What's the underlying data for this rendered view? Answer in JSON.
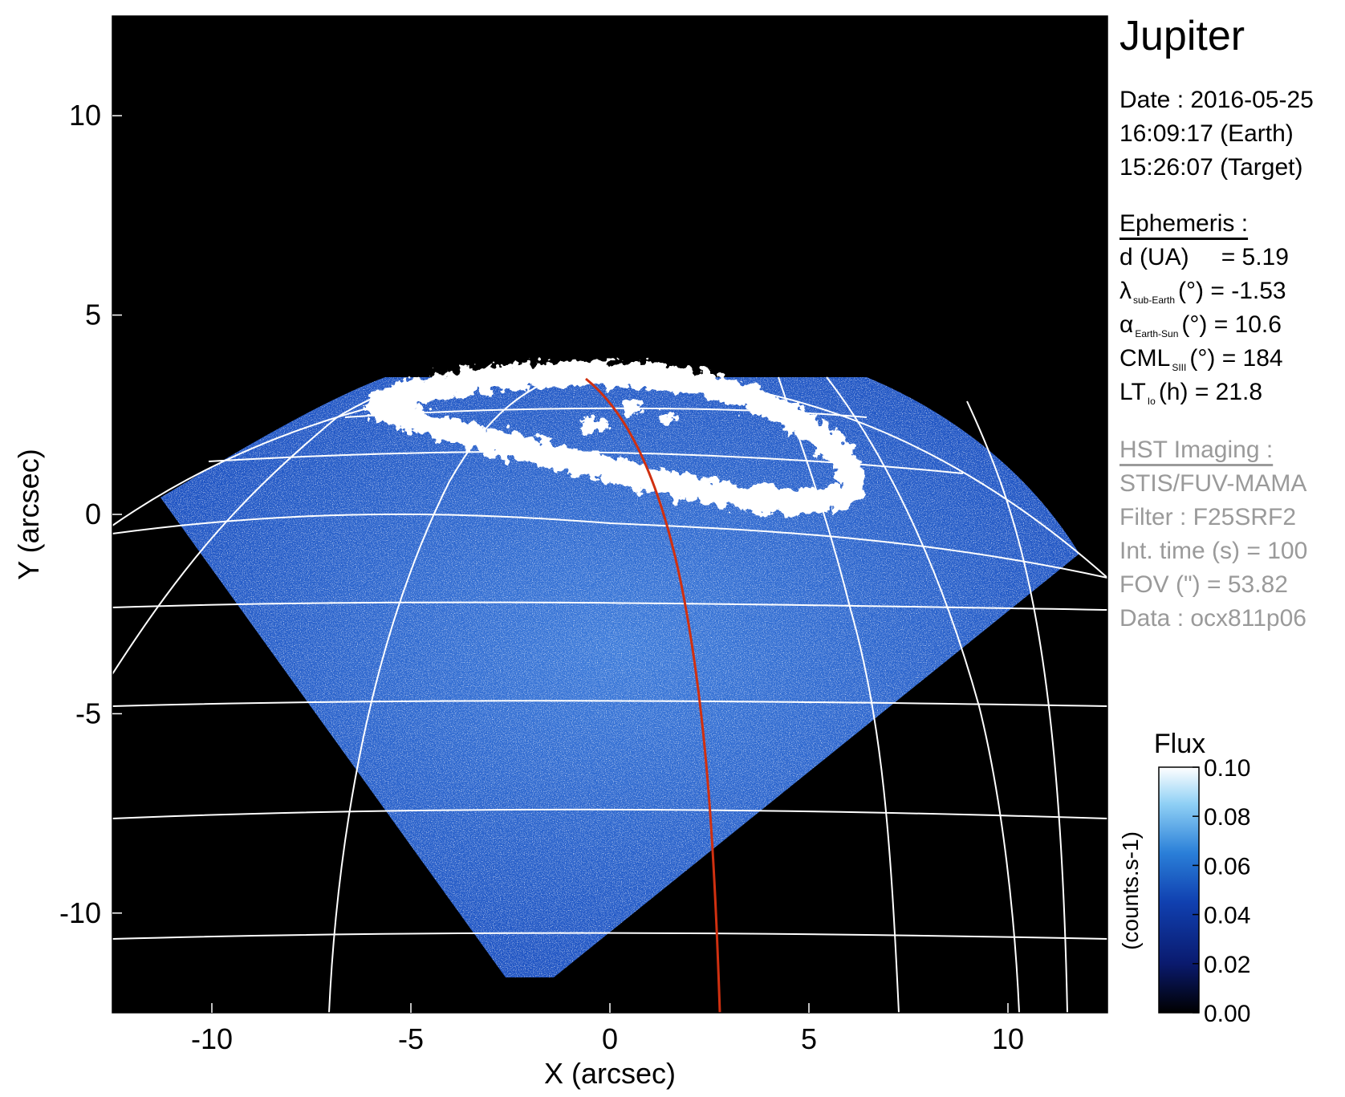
{
  "target": "Jupiter",
  "observation": {
    "date_line": "Date : 2016-05-25",
    "time_earth": "16:09:17 (Earth)",
    "time_target": "15:26:07 (Target)"
  },
  "ephemeris": {
    "heading": "Ephemeris :",
    "d": {
      "label": "d (UA)",
      "value": "= 5.19"
    },
    "lambda": {
      "symbol": "λ",
      "sub": "sub-Earth",
      "unit": "(°)",
      "value": "= -1.53"
    },
    "alpha": {
      "symbol": "α",
      "sub": "Earth-Sun",
      "unit": "(°)",
      "value": "= 10.6"
    },
    "cml": {
      "symbol": "CML",
      "sub": "SIII",
      "unit": "(°)",
      "value": "= 184"
    },
    "lt": {
      "symbol": "LT",
      "sub": "Io",
      "unit": "(h)",
      "value": "= 21.8"
    }
  },
  "hst": {
    "heading": "HST Imaging :",
    "instrument": "STIS/FUV-MAMA",
    "filter": "Filter : F25SRF2",
    "int_time": "Int. time (s) = 100",
    "fov": "FOV (\") = 53.82",
    "data": "Data : ocx811p06"
  },
  "axes": {
    "xlabel": "X (arcsec)",
    "ylabel": "Y (arcsec)",
    "xlim": [
      -12.5,
      12.5
    ],
    "ylim": [
      -12.5,
      12.5
    ],
    "xticks": [
      -10,
      -5,
      0,
      5,
      10
    ],
    "yticks": [
      10,
      5,
      0,
      -5,
      -10
    ]
  },
  "colorbar": {
    "title": "Flux",
    "label": "(counts.s-1)",
    "ticks": [
      "0.10",
      "0.08",
      "0.06",
      "0.04",
      "0.02",
      "0.00"
    ],
    "range": [
      0.0,
      0.1
    ],
    "colors": [
      "#000000",
      "#0a1a6e",
      "#1040b0",
      "#2a7fd8",
      "#8fd0f5",
      "#ffffff"
    ]
  },
  "colors": {
    "sky": "#000000",
    "emission": "#1e55c8",
    "aurora": "#ffffff",
    "grid": "#ffffff",
    "cml_meridian": "#d03010"
  }
}
